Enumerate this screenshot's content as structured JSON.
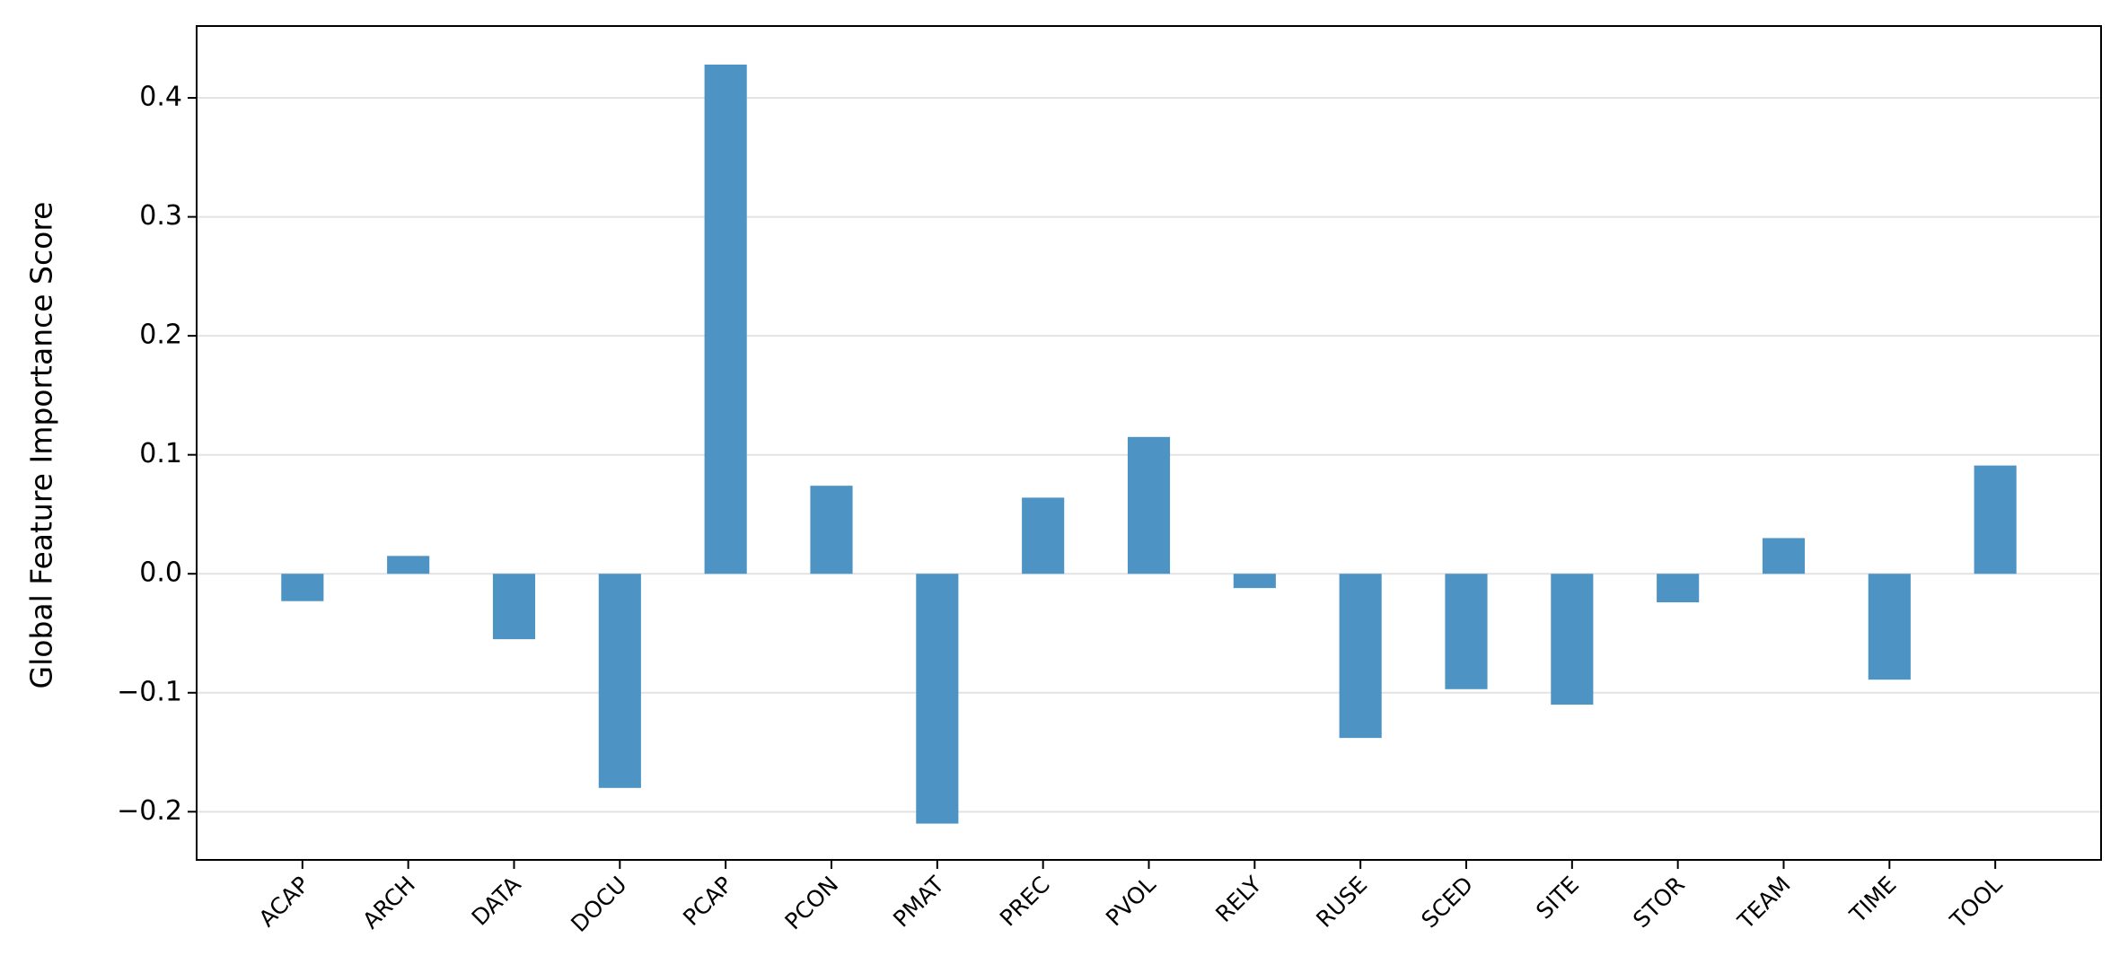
{
  "chart_data": {
    "type": "bar",
    "y_label": "Global Feature Importance Score",
    "categories": [
      "ACAP",
      "ARCH",
      "DATA",
      "DOCU",
      "PCAP",
      "PCON",
      "PMAT",
      "PREC",
      "PVOL",
      "RELY",
      "RUSE",
      "SCED",
      "SITE",
      "STOR",
      "TEAM",
      "TIME",
      "TOOL"
    ],
    "values": [
      -0.023,
      0.015,
      -0.055,
      -0.18,
      0.428,
      0.074,
      -0.21,
      0.064,
      0.115,
      -0.012,
      -0.138,
      -0.097,
      -0.11,
      -0.024,
      0.03,
      -0.089,
      0.091
    ],
    "color": "#4d94c5",
    "ylim": [
      -0.2405,
      0.4604
    ],
    "yticks": [
      {
        "value": -0.2,
        "label": "−0.2"
      },
      {
        "value": -0.1,
        "label": "−0.1"
      },
      {
        "value": 0,
        "label": "0.0"
      },
      0.1,
      0.2,
      0.3,
      0.4
    ],
    "grid": true
  }
}
